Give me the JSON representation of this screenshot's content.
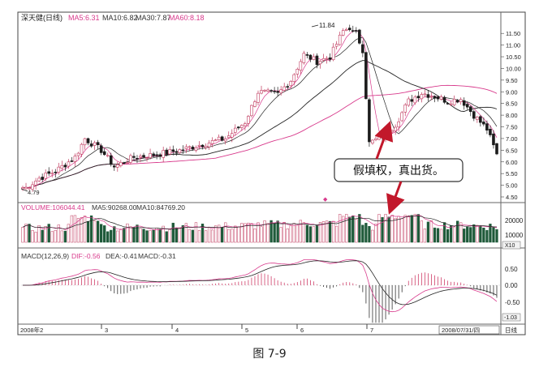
{
  "caption": "图 7-9",
  "price_panel": {
    "title": "深天健(日线)",
    "ma_labels": [
      {
        "text": "MA5:6.31",
        "color": "#d83a8c"
      },
      {
        "text": "MA10:6.82",
        "color": "#333333"
      },
      {
        "text": "MA30:7.87",
        "color": "#333333"
      },
      {
        "text": "MA60:8.18",
        "color": "#d83a8c"
      }
    ],
    "high_label": "11.84",
    "low_label": "4.79",
    "axis_ticks": [
      "11.50",
      "11.00",
      "10.50",
      "10.00",
      "9.50",
      "9.00",
      "8.50",
      "8.00",
      "7.50",
      "7.00",
      "6.50",
      "6.00",
      "5.50",
      "5.00",
      "4.50"
    ]
  },
  "callout": {
    "text": "假填权，真出货。"
  },
  "volume_panel": {
    "labels": [
      {
        "text": "VOLUME:106044.41",
        "color": "#d83a8c"
      },
      {
        "text": "MA5:90268.00",
        "color": "#333333"
      },
      {
        "text": "MA10:84769.20",
        "color": "#333333"
      }
    ],
    "axis_ticks": [
      "20000",
      "10000"
    ],
    "unit": "X10"
  },
  "macd_panel": {
    "labels": [
      {
        "text": "MACD(12,26,9)",
        "color": "#333333"
      },
      {
        "text": "DIF:-0.56",
        "color": "#d83a8c"
      },
      {
        "text": "DEA:-0.41",
        "color": "#333333"
      },
      {
        "text": "MACD:-0.31",
        "color": "#333333"
      }
    ],
    "axis_ticks": [
      "0.50",
      "0.00",
      "-0.50",
      "-1.03"
    ]
  },
  "time_axis": {
    "labels": [
      "2008年2",
      "3",
      "4",
      "5",
      "6",
      "7",
      "2008/07/31/四"
    ],
    "period": "日线"
  },
  "chart_data": {
    "type": "candlestick",
    "title": "深天健(日线)",
    "y_range": [
      4.5,
      11.84
    ],
    "price_path": [
      [
        0,
        4.79
      ],
      [
        5,
        5.3
      ],
      [
        10,
        5.6
      ],
      [
        16,
        6.2
      ],
      [
        19,
        7.0
      ],
      [
        24,
        6.5
      ],
      [
        28,
        5.8
      ],
      [
        34,
        6.2
      ],
      [
        40,
        6.3
      ],
      [
        48,
        6.5
      ],
      [
        56,
        6.8
      ],
      [
        62,
        7.0
      ],
      [
        68,
        7.7
      ],
      [
        72,
        9.0
      ],
      [
        78,
        8.9
      ],
      [
        82,
        9.5
      ],
      [
        86,
        10.6
      ],
      [
        90,
        10.3
      ],
      [
        94,
        10.5
      ],
      [
        98,
        11.6
      ],
      [
        101,
        11.84
      ],
      [
        104,
        10.8
      ],
      [
        106,
        6.8
      ],
      [
        110,
        7.1
      ],
      [
        114,
        7.6
      ],
      [
        118,
        8.6
      ],
      [
        122,
        8.95
      ],
      [
        126,
        8.8
      ],
      [
        130,
        8.6
      ],
      [
        134,
        8.7
      ],
      [
        138,
        8.0
      ],
      [
        142,
        7.4
      ],
      [
        145,
        6.3
      ]
    ],
    "moving_averages": [
      {
        "name": "MA5",
        "value": 6.31
      },
      {
        "name": "MA10",
        "value": 6.82
      },
      {
        "name": "MA30",
        "value": 7.87
      },
      {
        "name": "MA60",
        "value": 8.18
      }
    ],
    "volume": {
      "value": 106044.41,
      "ma5": 90268.0,
      "ma10": 84769.2
    },
    "macd": {
      "params": "12,26,9",
      "dif": -0.56,
      "dea": -0.41,
      "macd": -0.31,
      "y_range": [
        -1.03,
        0.75
      ]
    },
    "annotations": [
      {
        "text": "假填权，真出货。"
      },
      {
        "text": "11.84"
      },
      {
        "text": "4.79"
      }
    ]
  }
}
